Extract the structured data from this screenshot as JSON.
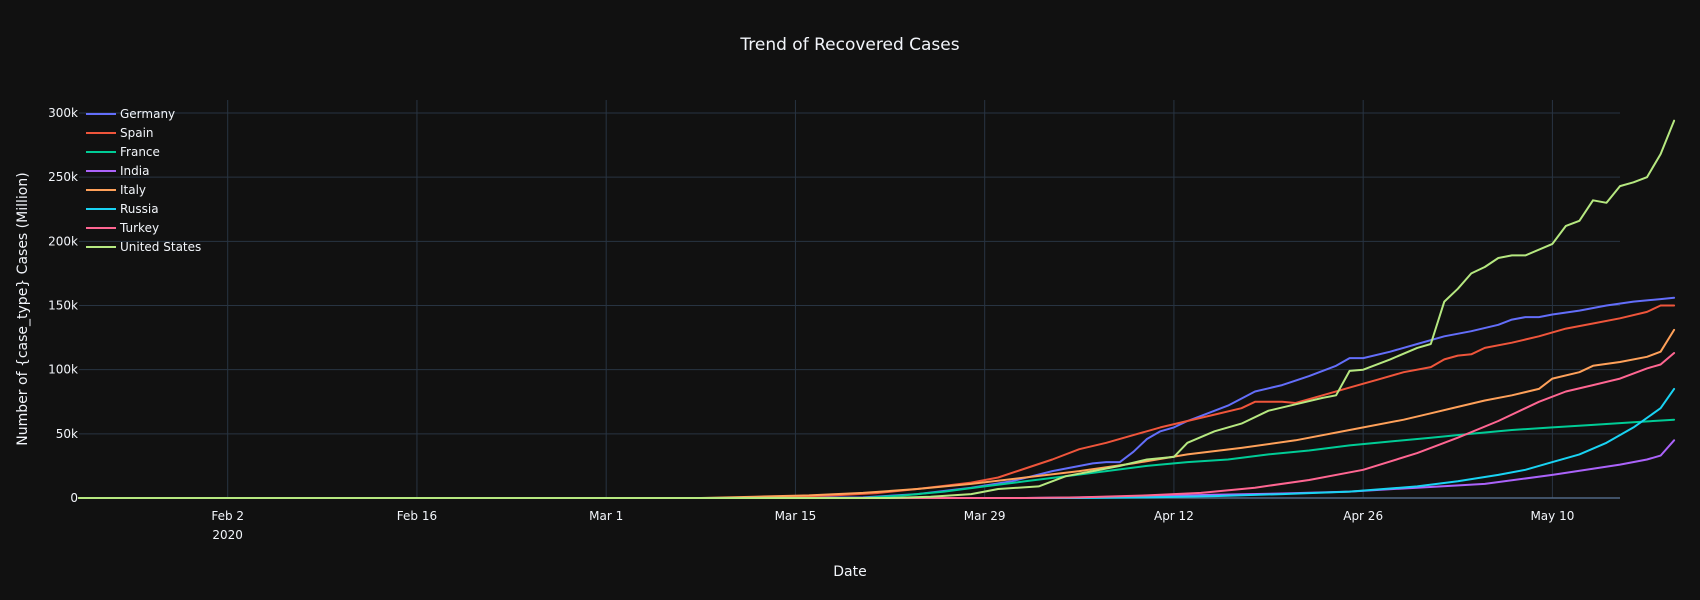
{
  "chart_data": {
    "type": "line",
    "title": "Trend of Recovered Cases",
    "xlabel": "Date",
    "ylabel": "Number of {case_type} Cases (Million)",
    "x_ticks": [
      {
        "date": "2020-02-02",
        "label": "Feb 2",
        "sublabel": "2020"
      },
      {
        "date": "2020-02-16",
        "label": "Feb 16"
      },
      {
        "date": "2020-03-01",
        "label": "Mar 1"
      },
      {
        "date": "2020-03-15",
        "label": "Mar 15"
      },
      {
        "date": "2020-03-29",
        "label": "Mar 29"
      },
      {
        "date": "2020-04-12",
        "label": "Apr 12"
      },
      {
        "date": "2020-04-26",
        "label": "Apr 26"
      },
      {
        "date": "2020-05-10",
        "label": "May 10"
      }
    ],
    "y_ticks": [
      {
        "value": 0,
        "label": "0"
      },
      {
        "value": 50000,
        "label": "50k"
      },
      {
        "value": 100000,
        "label": "100k"
      },
      {
        "value": 150000,
        "label": "150k"
      },
      {
        "value": 200000,
        "label": "200k"
      },
      {
        "value": 250000,
        "label": "250k"
      },
      {
        "value": 300000,
        "label": "300k"
      }
    ],
    "xlim": [
      "2020-01-22",
      "2020-05-15"
    ],
    "ylim": [
      0,
      300000
    ],
    "grid": true,
    "legend_position": "top-left",
    "series": [
      {
        "name": "Germany",
        "color": "#636efa",
        "points": [
          [
            "2020-01-22",
            0
          ],
          [
            "2020-03-12",
            0
          ],
          [
            "2020-03-20",
            500
          ],
          [
            "2020-03-24",
            3000
          ],
          [
            "2020-03-28",
            8000
          ],
          [
            "2020-03-31",
            13000
          ],
          [
            "2020-04-03",
            21000
          ],
          [
            "2020-04-06",
            27000
          ],
          [
            "2020-04-07",
            28000
          ],
          [
            "2020-04-08",
            28000
          ],
          [
            "2020-04-09",
            36000
          ],
          [
            "2020-04-10",
            46000
          ],
          [
            "2020-04-11",
            52000
          ],
          [
            "2020-04-12",
            55000
          ],
          [
            "2020-04-13",
            60000
          ],
          [
            "2020-04-14",
            64000
          ],
          [
            "2020-04-16",
            72000
          ],
          [
            "2020-04-18",
            83000
          ],
          [
            "2020-04-20",
            88000
          ],
          [
            "2020-04-22",
            95000
          ],
          [
            "2020-04-24",
            103000
          ],
          [
            "2020-04-25",
            109000
          ],
          [
            "2020-04-26",
            109000
          ],
          [
            "2020-04-28",
            114000
          ],
          [
            "2020-04-30",
            120000
          ],
          [
            "2020-05-02",
            126000
          ],
          [
            "2020-05-04",
            130000
          ],
          [
            "2020-05-06",
            135000
          ],
          [
            "2020-05-07",
            139000
          ],
          [
            "2020-05-08",
            141000
          ],
          [
            "2020-05-09",
            141000
          ],
          [
            "2020-05-10",
            143000
          ],
          [
            "2020-05-12",
            146000
          ],
          [
            "2020-05-14",
            150000
          ],
          [
            "2020-05-16",
            153000
          ],
          [
            "2020-05-18",
            155000
          ],
          [
            "2020-05-19",
            156000
          ]
        ]
      },
      {
        "name": "Spain",
        "color": "#ef553b",
        "points": [
          [
            "2020-01-22",
            0
          ],
          [
            "2020-03-10",
            0
          ],
          [
            "2020-03-12",
            500
          ],
          [
            "2020-03-15",
            1100
          ],
          [
            "2020-03-18",
            2100
          ],
          [
            "2020-03-21",
            3800
          ],
          [
            "2020-03-24",
            7000
          ],
          [
            "2020-03-26",
            9400
          ],
          [
            "2020-03-28",
            12000
          ],
          [
            "2020-03-30",
            16000
          ],
          [
            "2020-04-01",
            23000
          ],
          [
            "2020-04-03",
            30000
          ],
          [
            "2020-04-05",
            38000
          ],
          [
            "2020-04-07",
            43000
          ],
          [
            "2020-04-09",
            49000
          ],
          [
            "2020-04-11",
            55000
          ],
          [
            "2020-04-13",
            60000
          ],
          [
            "2020-04-15",
            65000
          ],
          [
            "2020-04-17",
            70000
          ],
          [
            "2020-04-18",
            75000
          ],
          [
            "2020-04-20",
            75000
          ],
          [
            "2020-04-21",
            74000
          ],
          [
            "2020-04-23",
            80000
          ],
          [
            "2020-04-25",
            86000
          ],
          [
            "2020-04-27",
            92000
          ],
          [
            "2020-04-29",
            98000
          ],
          [
            "2020-05-01",
            102000
          ],
          [
            "2020-05-02",
            108000
          ],
          [
            "2020-05-03",
            111000
          ],
          [
            "2020-05-04",
            112000
          ],
          [
            "2020-05-05",
            117000
          ],
          [
            "2020-05-07",
            121000
          ],
          [
            "2020-05-09",
            126000
          ],
          [
            "2020-05-11",
            132000
          ],
          [
            "2020-05-13",
            136000
          ],
          [
            "2020-05-15",
            140000
          ],
          [
            "2020-05-17",
            145000
          ],
          [
            "2020-05-18",
            150000
          ],
          [
            "2020-05-19",
            150000
          ]
        ]
      },
      {
        "name": "France",
        "color": "#00cc96",
        "points": [
          [
            "2020-01-22",
            0
          ],
          [
            "2020-03-20",
            0
          ],
          [
            "2020-03-23",
            2000
          ],
          [
            "2020-03-26",
            5000
          ],
          [
            "2020-03-29",
            9000
          ],
          [
            "2020-04-01",
            13000
          ],
          [
            "2020-04-04",
            17000
          ],
          [
            "2020-04-07",
            21000
          ],
          [
            "2020-04-10",
            25000
          ],
          [
            "2020-04-13",
            28000
          ],
          [
            "2020-04-16",
            30000
          ],
          [
            "2020-04-19",
            34000
          ],
          [
            "2020-04-22",
            37000
          ],
          [
            "2020-04-25",
            41000
          ],
          [
            "2020-04-28",
            44000
          ],
          [
            "2020-05-01",
            47000
          ],
          [
            "2020-05-04",
            50000
          ],
          [
            "2020-05-07",
            53000
          ],
          [
            "2020-05-10",
            55000
          ],
          [
            "2020-05-13",
            57000
          ],
          [
            "2020-05-16",
            59000
          ],
          [
            "2020-05-19",
            61000
          ]
        ]
      },
      {
        "name": "India",
        "color": "#ab63fa",
        "points": [
          [
            "2020-01-22",
            0
          ],
          [
            "2020-04-01",
            0
          ],
          [
            "2020-04-05",
            500
          ],
          [
            "2020-04-10",
            1300
          ],
          [
            "2020-04-15",
            2500
          ],
          [
            "2020-04-20",
            3500
          ],
          [
            "2020-04-25",
            5000
          ],
          [
            "2020-04-30",
            8000
          ],
          [
            "2020-05-05",
            11000
          ],
          [
            "2020-05-10",
            18000
          ],
          [
            "2020-05-15",
            26000
          ],
          [
            "2020-05-17",
            30000
          ],
          [
            "2020-05-18",
            33000
          ],
          [
            "2020-05-19",
            45000
          ]
        ]
      },
      {
        "name": "Italy",
        "color": "#ffa15a",
        "points": [
          [
            "2020-01-22",
            0
          ],
          [
            "2020-03-08",
            0
          ],
          [
            "2020-03-12",
            1000
          ],
          [
            "2020-03-16",
            2000
          ],
          [
            "2020-03-20",
            4000
          ],
          [
            "2020-03-24",
            7000
          ],
          [
            "2020-03-28",
            11000
          ],
          [
            "2020-04-01",
            16000
          ],
          [
            "2020-04-05",
            21000
          ],
          [
            "2020-04-09",
            27000
          ],
          [
            "2020-04-13",
            34000
          ],
          [
            "2020-04-17",
            39000
          ],
          [
            "2020-04-21",
            45000
          ],
          [
            "2020-04-25",
            53000
          ],
          [
            "2020-04-29",
            61000
          ],
          [
            "2020-05-01",
            66000
          ],
          [
            "2020-05-03",
            71000
          ],
          [
            "2020-05-05",
            76000
          ],
          [
            "2020-05-07",
            80000
          ],
          [
            "2020-05-09",
            85000
          ],
          [
            "2020-05-10",
            93000
          ],
          [
            "2020-05-12",
            98000
          ],
          [
            "2020-05-13",
            103000
          ],
          [
            "2020-05-15",
            106000
          ],
          [
            "2020-05-17",
            110000
          ],
          [
            "2020-05-18",
            114000
          ],
          [
            "2020-05-19",
            131000
          ]
        ]
      },
      {
        "name": "Russia",
        "color": "#19d3f3",
        "points": [
          [
            "2020-01-22",
            0
          ],
          [
            "2020-04-05",
            0
          ],
          [
            "2020-04-10",
            500
          ],
          [
            "2020-04-15",
            1500
          ],
          [
            "2020-04-20",
            3000
          ],
          [
            "2020-04-25",
            5000
          ],
          [
            "2020-04-30",
            9000
          ],
          [
            "2020-05-03",
            13000
          ],
          [
            "2020-05-06",
            18000
          ],
          [
            "2020-05-08",
            22000
          ],
          [
            "2020-05-10",
            28000
          ],
          [
            "2020-05-12",
            34000
          ],
          [
            "2020-05-14",
            43000
          ],
          [
            "2020-05-16",
            55000
          ],
          [
            "2020-05-18",
            70000
          ],
          [
            "2020-05-19",
            85000
          ]
        ]
      },
      {
        "name": "Turkey",
        "color": "#ff6692",
        "points": [
          [
            "2020-01-22",
            0
          ],
          [
            "2020-04-01",
            0
          ],
          [
            "2020-04-05",
            500
          ],
          [
            "2020-04-10",
            2000
          ],
          [
            "2020-04-14",
            4000
          ],
          [
            "2020-04-18",
            8000
          ],
          [
            "2020-04-22",
            14000
          ],
          [
            "2020-04-26",
            22000
          ],
          [
            "2020-04-30",
            35000
          ],
          [
            "2020-05-03",
            47000
          ],
          [
            "2020-05-06",
            60000
          ],
          [
            "2020-05-09",
            75000
          ],
          [
            "2020-05-11",
            83000
          ],
          [
            "2020-05-13",
            88000
          ],
          [
            "2020-05-15",
            93000
          ],
          [
            "2020-05-17",
            101000
          ],
          [
            "2020-05-18",
            104000
          ],
          [
            "2020-05-19",
            113000
          ]
        ]
      },
      {
        "name": "United States",
        "color": "#b6e880",
        "points": [
          [
            "2020-01-22",
            0
          ],
          [
            "2020-03-22",
            0
          ],
          [
            "2020-03-25",
            1000
          ],
          [
            "2020-03-28",
            3000
          ],
          [
            "2020-03-30",
            7000
          ],
          [
            "2020-04-02",
            9000
          ],
          [
            "2020-04-04",
            17000
          ],
          [
            "2020-04-06",
            21000
          ],
          [
            "2020-04-08",
            25000
          ],
          [
            "2020-04-10",
            30000
          ],
          [
            "2020-04-12",
            32000
          ],
          [
            "2020-04-13",
            43000
          ],
          [
            "2020-04-15",
            52000
          ],
          [
            "2020-04-17",
            58000
          ],
          [
            "2020-04-19",
            68000
          ],
          [
            "2020-04-21",
            73000
          ],
          [
            "2020-04-23",
            78000
          ],
          [
            "2020-04-24",
            80000
          ],
          [
            "2020-04-25",
            99000
          ],
          [
            "2020-04-26",
            100000
          ],
          [
            "2020-04-28",
            108000
          ],
          [
            "2020-04-30",
            117000
          ],
          [
            "2020-05-01",
            120000
          ],
          [
            "2020-05-02",
            153000
          ],
          [
            "2020-05-03",
            163000
          ],
          [
            "2020-05-04",
            175000
          ],
          [
            "2020-05-05",
            180000
          ],
          [
            "2020-05-06",
            187000
          ],
          [
            "2020-05-07",
            189000
          ],
          [
            "2020-05-08",
            189000
          ],
          [
            "2020-05-10",
            198000
          ],
          [
            "2020-05-11",
            212000
          ],
          [
            "2020-05-12",
            216000
          ],
          [
            "2020-05-13",
            232000
          ],
          [
            "2020-05-14",
            230000
          ],
          [
            "2020-05-15",
            243000
          ],
          [
            "2020-05-16",
            246000
          ],
          [
            "2020-05-17",
            250000
          ],
          [
            "2020-05-18",
            268000
          ],
          [
            "2020-05-19",
            294000
          ]
        ]
      }
    ]
  }
}
